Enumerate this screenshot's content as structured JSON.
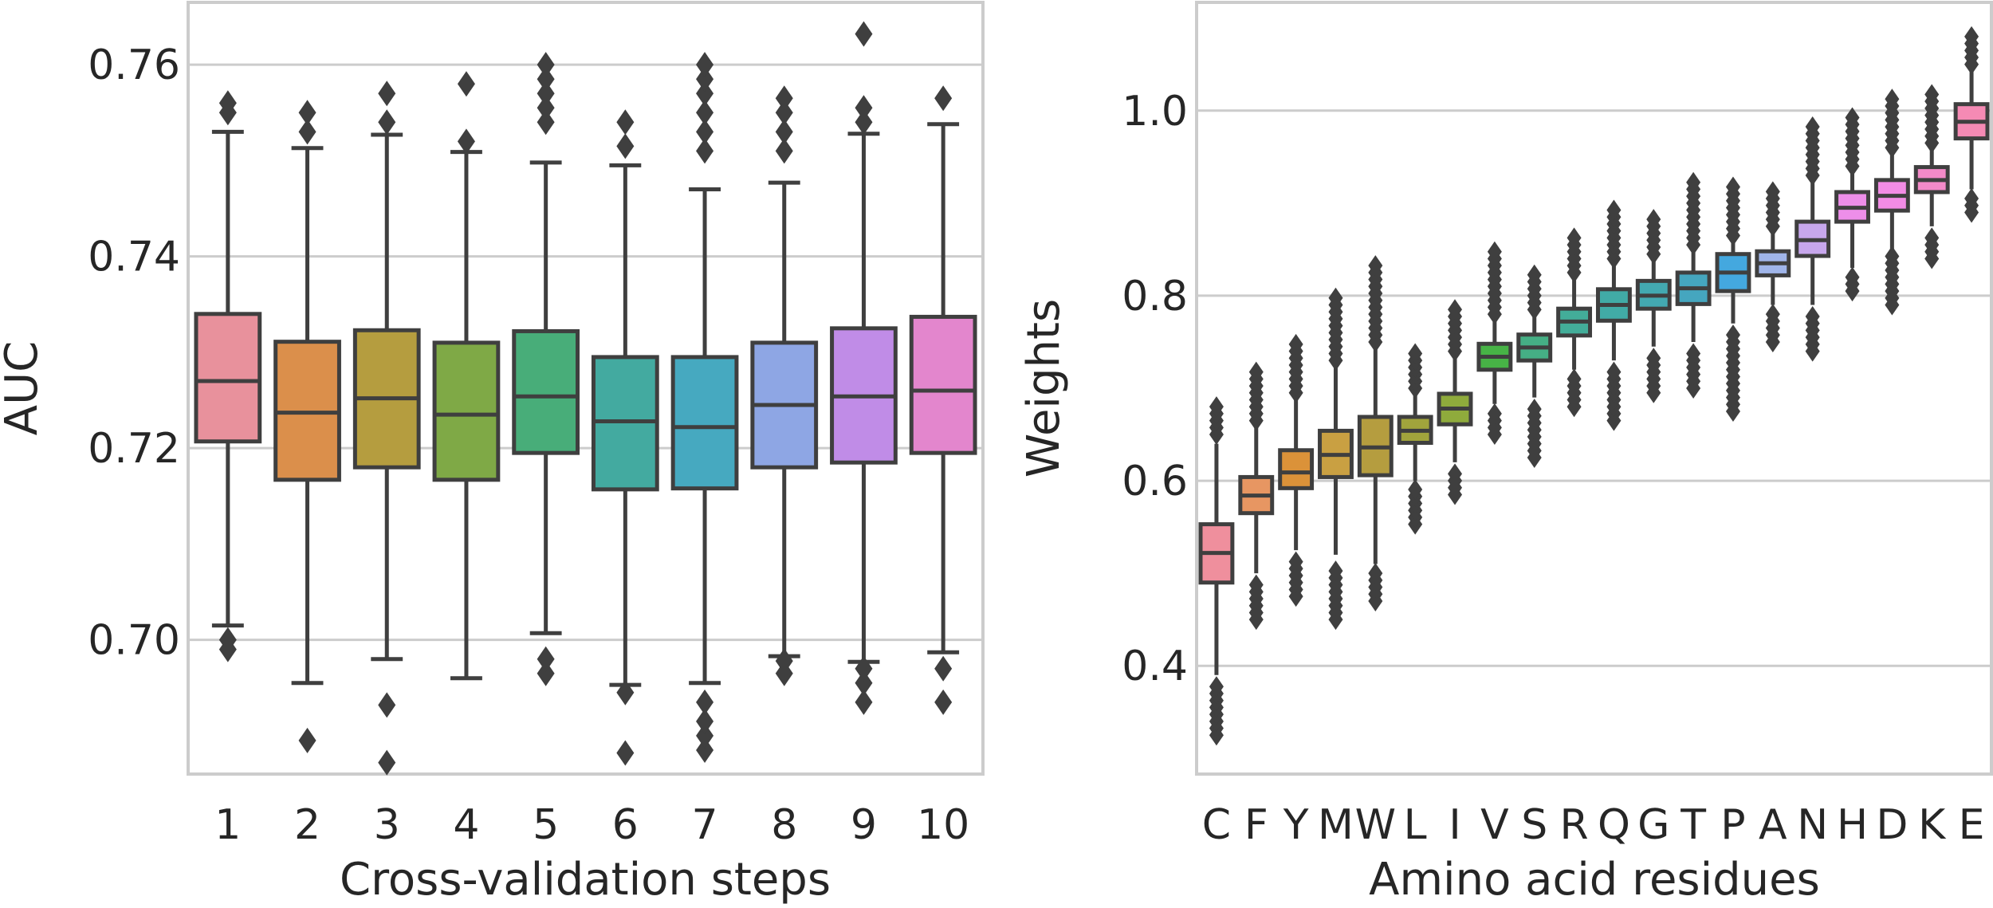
{
  "chart_data": [
    {
      "type": "box",
      "xlabel": "Cross-validation steps",
      "ylabel": "AUC",
      "ylim": [
        0.686,
        0.7665
      ],
      "yticks": [
        "0.70",
        "0.72",
        "0.74",
        "0.76"
      ],
      "ytick_values": [
        0.7,
        0.72,
        0.74,
        0.76
      ],
      "grid": true,
      "categories": [
        "1",
        "2",
        "3",
        "4",
        "5",
        "6",
        "7",
        "8",
        "9",
        "10"
      ],
      "colors": [
        "#e8919c",
        "#db8f4b",
        "#b59d3f",
        "#7fa946",
        "#48ad79",
        "#43aaa0",
        "#46a9c0",
        "#8ea6e4",
        "#c08ce7",
        "#e386cd"
      ],
      "boxes": [
        {
          "label": "1",
          "low": 0.7015,
          "q1": 0.7207,
          "median": 0.727,
          "q3": 0.734,
          "high": 0.753,
          "fliers": [
            0.699,
            0.7,
            0.755,
            0.756
          ]
        },
        {
          "label": "2",
          "low": 0.6955,
          "q1": 0.7167,
          "median": 0.7237,
          "q3": 0.7311,
          "high": 0.7513,
          "fliers": [
            0.6895,
            0.753,
            0.755
          ]
        },
        {
          "label": "3",
          "low": 0.698,
          "q1": 0.718,
          "median": 0.7252,
          "q3": 0.7323,
          "high": 0.7527,
          "fliers": [
            0.6872,
            0.6932,
            0.754,
            0.757
          ]
        },
        {
          "label": "4",
          "low": 0.696,
          "q1": 0.7167,
          "median": 0.7235,
          "q3": 0.731,
          "high": 0.7509,
          "fliers": [
            0.752,
            0.758
          ]
        },
        {
          "label": "5",
          "low": 0.7007,
          "q1": 0.7195,
          "median": 0.7254,
          "q3": 0.7322,
          "high": 0.7498,
          "fliers": [
            0.6965,
            0.698,
            0.754,
            0.7555,
            0.757,
            0.7585,
            0.76
          ]
        },
        {
          "label": "6",
          "low": 0.6953,
          "q1": 0.7157,
          "median": 0.7228,
          "q3": 0.7295,
          "high": 0.7495,
          "fliers": [
            0.6882,
            0.6945,
            0.7515,
            0.754
          ]
        },
        {
          "label": "7",
          "low": 0.6955,
          "q1": 0.7158,
          "median": 0.7222,
          "q3": 0.7295,
          "high": 0.747,
          "fliers": [
            0.6885,
            0.69,
            0.6915,
            0.6935,
            0.751,
            0.753,
            0.755,
            0.757,
            0.7585,
            0.76
          ]
        },
        {
          "label": "8",
          "low": 0.6983,
          "q1": 0.718,
          "median": 0.7245,
          "q3": 0.731,
          "high": 0.7477,
          "fliers": [
            0.6965,
            0.6978,
            0.751,
            0.753,
            0.755,
            0.7565
          ]
        },
        {
          "label": "9",
          "low": 0.6977,
          "q1": 0.7185,
          "median": 0.7254,
          "q3": 0.7325,
          "high": 0.7528,
          "fliers": [
            0.6935,
            0.6955,
            0.697,
            0.754,
            0.7555,
            0.7632
          ]
        },
        {
          "label": "10",
          "low": 0.6987,
          "q1": 0.7195,
          "median": 0.726,
          "q3": 0.7337,
          "high": 0.7538,
          "fliers": [
            0.6935,
            0.697,
            0.7565
          ]
        }
      ]
    },
    {
      "type": "box",
      "xlabel": "Amino acid residues",
      "ylabel": "Weights",
      "ylim": [
        0.283,
        1.117
      ],
      "yticks": [
        "0.4",
        "0.6",
        "0.8",
        "1.0"
      ],
      "ytick_values": [
        0.4,
        0.6,
        0.8,
        1.0
      ],
      "grid": true,
      "categories": [
        "C",
        "F",
        "Y",
        "M",
        "W",
        "L",
        "I",
        "V",
        "S",
        "R",
        "Q",
        "G",
        "T",
        "P",
        "A",
        "N",
        "H",
        "D",
        "K",
        "E"
      ],
      "colors": [
        "#ef8f9d",
        "#e79662",
        "#db9239",
        "#c9a042",
        "#b59d3f",
        "#a1a43c",
        "#8fab3c",
        "#47b346",
        "#45af85",
        "#43ad99",
        "#41aba6",
        "#43a9b1",
        "#45a6bf",
        "#44a8df",
        "#a0b5e9",
        "#c7a7ec",
        "#ed8ee9",
        "#f28ce5",
        "#f38ac8",
        "#f58ab4"
      ],
      "boxes": [
        {
          "label": "C",
          "low": 0.39,
          "q1": 0.49,
          "median": 0.522,
          "q3": 0.553,
          "high": 0.64,
          "fliers_low": [
            0.325,
            0.385
          ],
          "fliers_high": [
            0.65,
            0.685
          ]
        },
        {
          "label": "F",
          "low": 0.5,
          "q1": 0.565,
          "median": 0.584,
          "q3": 0.604,
          "high": 0.66,
          "fliers_low": [
            0.45,
            0.495
          ],
          "fliers_high": [
            0.665,
            0.725
          ]
        },
        {
          "label": "Y",
          "low": 0.525,
          "q1": 0.592,
          "median": 0.609,
          "q3": 0.633,
          "high": 0.69,
          "fliers_low": [
            0.475,
            0.52
          ],
          "fliers_high": [
            0.695,
            0.755
          ]
        },
        {
          "label": "M",
          "low": 0.52,
          "q1": 0.604,
          "median": 0.628,
          "q3": 0.654,
          "high": 0.725,
          "fliers_low": [
            0.45,
            0.51
          ],
          "fliers_high": [
            0.73,
            0.8
          ]
        },
        {
          "label": "W",
          "low": 0.51,
          "q1": 0.606,
          "median": 0.636,
          "q3": 0.669,
          "high": 0.745,
          "fliers_low": [
            0.47,
            0.505
          ],
          "fliers_high": [
            0.75,
            0.835
          ]
        },
        {
          "label": "L",
          "low": 0.6,
          "q1": 0.641,
          "median": 0.654,
          "q3": 0.669,
          "high": 0.695,
          "fliers_low": [
            0.553,
            0.595
          ],
          "fliers_high": [
            0.7,
            0.74
          ]
        },
        {
          "label": "I",
          "low": 0.62,
          "q1": 0.661,
          "median": 0.678,
          "q3": 0.694,
          "high": 0.738,
          "fliers_low": [
            0.585,
            0.615
          ],
          "fliers_high": [
            0.74,
            0.79
          ]
        },
        {
          "label": "V",
          "low": 0.683,
          "q1": 0.72,
          "median": 0.734,
          "q3": 0.748,
          "high": 0.775,
          "fliers_low": [
            0.65,
            0.678
          ],
          "fliers_high": [
            0.78,
            0.85
          ]
        },
        {
          "label": "S",
          "low": 0.69,
          "q1": 0.73,
          "median": 0.744,
          "q3": 0.758,
          "high": 0.78,
          "fliers_low": [
            0.625,
            0.685
          ],
          "fliers_high": [
            0.785,
            0.825
          ]
        },
        {
          "label": "R",
          "low": 0.72,
          "q1": 0.757,
          "median": 0.772,
          "q3": 0.786,
          "high": 0.82,
          "fliers_low": [
            0.68,
            0.715
          ],
          "fliers_high": [
            0.825,
            0.87
          ]
        },
        {
          "label": "Q",
          "low": 0.73,
          "q1": 0.773,
          "median": 0.79,
          "q3": 0.807,
          "high": 0.835,
          "fliers_low": [
            0.665,
            0.725
          ],
          "fliers_high": [
            0.84,
            0.9
          ]
        },
        {
          "label": "G",
          "low": 0.745,
          "q1": 0.786,
          "median": 0.8,
          "q3": 0.816,
          "high": 0.84,
          "fliers_low": [
            0.695,
            0.74
          ],
          "fliers_high": [
            0.845,
            0.89
          ]
        },
        {
          "label": "T",
          "low": 0.75,
          "q1": 0.791,
          "median": 0.808,
          "q3": 0.825,
          "high": 0.85,
          "fliers_low": [
            0.7,
            0.745
          ],
          "fliers_high": [
            0.855,
            0.925
          ]
        },
        {
          "label": "P",
          "low": 0.77,
          "q1": 0.805,
          "median": 0.825,
          "q3": 0.845,
          "high": 0.86,
          "fliers_low": [
            0.675,
            0.765
          ],
          "fliers_high": [
            0.865,
            0.92
          ]
        },
        {
          "label": "A",
          "low": 0.79,
          "q1": 0.822,
          "median": 0.835,
          "q3": 0.848,
          "high": 0.87,
          "fliers_low": [
            0.75,
            0.785
          ],
          "fliers_high": [
            0.875,
            0.92
          ]
        },
        {
          "label": "N",
          "low": 0.79,
          "q1": 0.843,
          "median": 0.86,
          "q3": 0.88,
          "high": 0.925,
          "fliers_low": [
            0.74,
            0.785
          ],
          "fliers_high": [
            0.93,
            0.985
          ]
        },
        {
          "label": "H",
          "low": 0.83,
          "q1": 0.88,
          "median": 0.895,
          "q3": 0.912,
          "high": 0.935,
          "fliers_low": [
            0.805,
            0.825
          ],
          "fliers_high": [
            0.94,
            1.0
          ]
        },
        {
          "label": "D",
          "low": 0.85,
          "q1": 0.892,
          "median": 0.908,
          "q3": 0.925,
          "high": 0.955,
          "fliers_low": [
            0.79,
            0.845
          ],
          "fliers_high": [
            0.96,
            1.015
          ]
        },
        {
          "label": "K",
          "low": 0.875,
          "q1": 0.912,
          "median": 0.925,
          "q3": 0.939,
          "high": 0.96,
          "fliers_low": [
            0.84,
            0.87
          ],
          "fliers_high": [
            0.965,
            1.025
          ]
        },
        {
          "label": "E",
          "low": 0.915,
          "q1": 0.97,
          "median": 0.988,
          "q3": 1.007,
          "high": 1.045,
          "fliers_low": [
            0.89,
            0.91
          ],
          "fliers_high": [
            1.05,
            1.085
          ]
        }
      ]
    }
  ]
}
